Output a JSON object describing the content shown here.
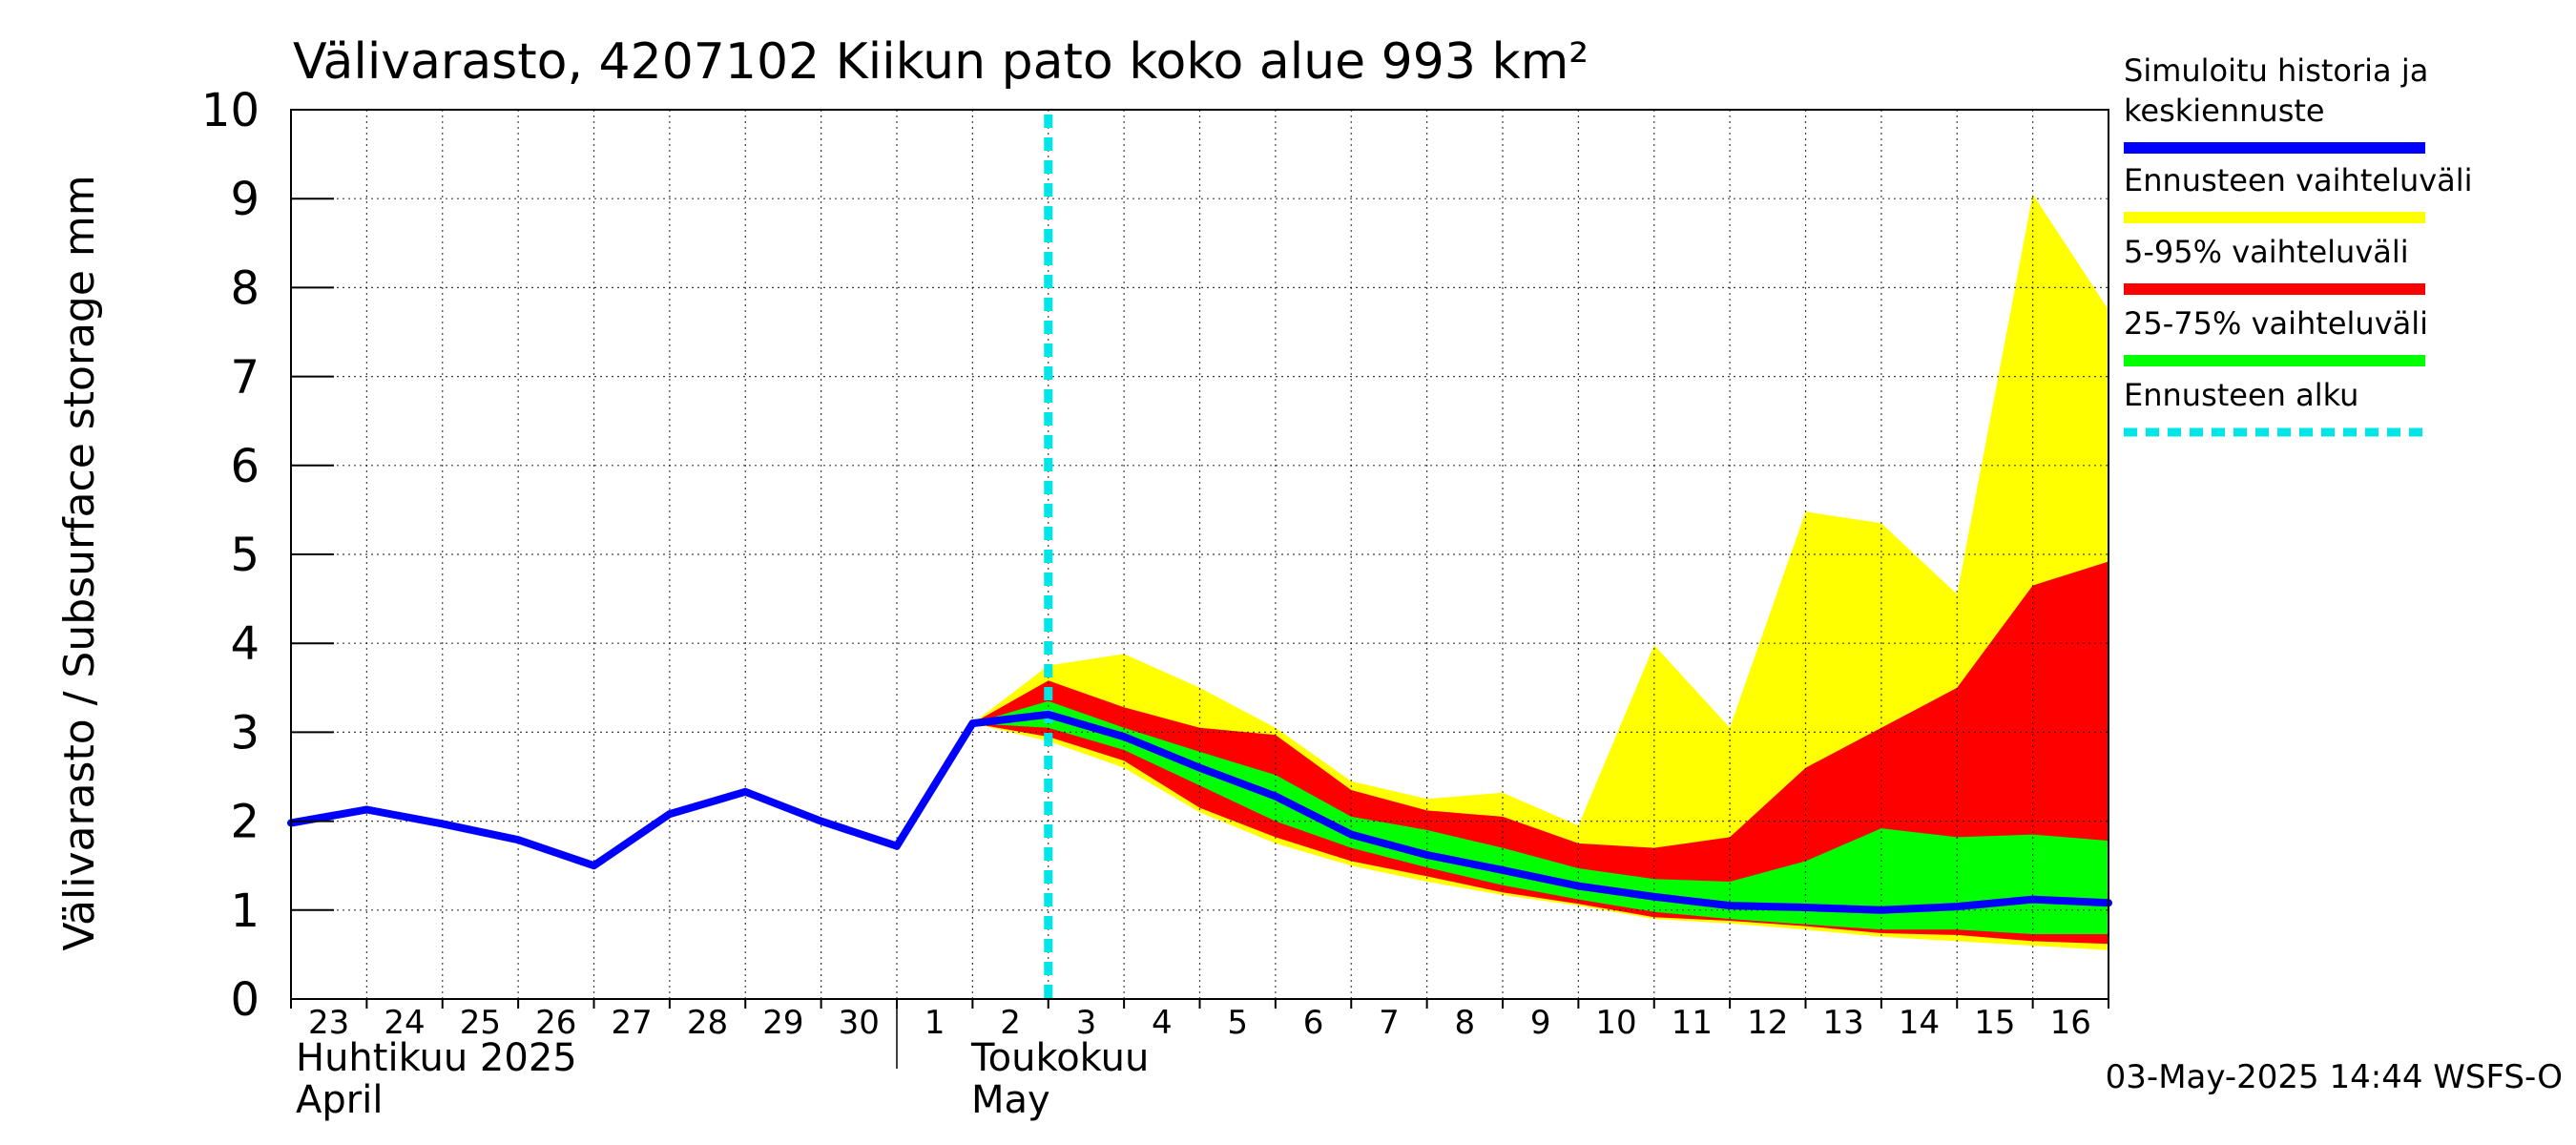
{
  "chart_data": {
    "type": "area",
    "title": "Välivarasto, 4207102 Kiikun pato koko alue 993 km²",
    "ylabel": "Välivarasto / Subsurface storage  mm",
    "ylim": [
      0,
      10
    ],
    "y_ticks": [
      "0",
      "1",
      "2",
      "3",
      "4",
      "5",
      "6",
      "7",
      "8",
      "9",
      "10"
    ],
    "x_range": [
      "2025-04-23",
      "2025-05-17"
    ],
    "x_tick_labels": [
      "23",
      "24",
      "25",
      "26",
      "27",
      "28",
      "29",
      "30",
      "1",
      "2",
      "3",
      "4",
      "5",
      "6",
      "7",
      "8",
      "9",
      "10",
      "11",
      "12",
      "13",
      "14",
      "15",
      "16"
    ],
    "month_labels": [
      {
        "line1": "Huhtikuu  2025",
        "line2": "April"
      },
      {
        "line1": "Toukokuu",
        "line2": "May"
      }
    ],
    "forecast_start": "2025-05-03",
    "grid": true,
    "legend_position": "right",
    "timestamp": "03-May-2025 14:44 WSFS-O",
    "x": [
      "2025-04-23",
      "2025-04-24",
      "2025-04-25",
      "2025-04-26",
      "2025-04-27",
      "2025-04-28",
      "2025-04-29",
      "2025-04-30",
      "2025-05-01",
      "2025-05-02",
      "2025-05-03",
      "2025-05-04",
      "2025-05-05",
      "2025-05-06",
      "2025-05-07",
      "2025-05-08",
      "2025-05-09",
      "2025-05-10",
      "2025-05-11",
      "2025-05-12",
      "2025-05-13",
      "2025-05-14",
      "2025-05-15",
      "2025-05-16",
      "2025-05-17"
    ],
    "series": [
      {
        "name": "Simuloitu historia ja keskiennuste",
        "color": "#0000ff",
        "kind": "line",
        "values": [
          1.98,
          2.13,
          1.97,
          1.79,
          1.5,
          2.08,
          2.33,
          2.0,
          1.72,
          3.1,
          3.2,
          2.95,
          2.6,
          2.28,
          1.85,
          1.62,
          1.45,
          1.27,
          1.15,
          1.05,
          1.03,
          1.0,
          1.04,
          1.12,
          1.08
        ]
      },
      {
        "name": "Ennusteen vaihteluväli",
        "color": "#ffff00",
        "kind": "band",
        "x_start_index": 9,
        "upper": [
          3.1,
          3.75,
          3.88,
          3.5,
          3.05,
          2.45,
          2.25,
          2.32,
          1.95,
          3.98,
          3.05,
          5.48,
          5.35,
          4.55,
          9.05,
          7.75
        ],
        "lower": [
          3.1,
          2.9,
          2.6,
          2.1,
          1.75,
          1.5,
          1.32,
          1.17,
          1.05,
          0.9,
          0.85,
          0.78,
          0.7,
          0.65,
          0.6,
          0.55
        ]
      },
      {
        "name": "5-95% vaihteluväli",
        "color": "#ff0000",
        "kind": "band",
        "x_start_index": 9,
        "upper": [
          3.1,
          3.58,
          3.28,
          3.05,
          2.97,
          2.35,
          2.12,
          2.05,
          1.75,
          1.7,
          1.82,
          2.6,
          3.05,
          3.5,
          4.65,
          4.92
        ],
        "lower": [
          3.1,
          2.95,
          2.68,
          2.15,
          1.82,
          1.55,
          1.38,
          1.2,
          1.07,
          0.92,
          0.88,
          0.82,
          0.74,
          0.72,
          0.65,
          0.62
        ]
      },
      {
        "name": "25-75% vaihteluväli",
        "color": "#00ff00",
        "kind": "band",
        "x_start_index": 9,
        "upper": [
          3.1,
          3.35,
          3.05,
          2.78,
          2.52,
          2.05,
          1.9,
          1.7,
          1.47,
          1.35,
          1.32,
          1.55,
          1.92,
          1.82,
          1.85,
          1.78
        ],
        "lower": [
          3.1,
          3.05,
          2.8,
          2.4,
          2.0,
          1.7,
          1.48,
          1.28,
          1.12,
          0.98,
          0.9,
          0.84,
          0.78,
          0.78,
          0.73,
          0.73
        ]
      },
      {
        "name": "Ennusteen alku",
        "color": "#00e5e5",
        "kind": "vline",
        "x": "2025-05-03"
      }
    ],
    "legend": [
      {
        "label": "Simuloitu historia ja keskiennuste",
        "lines": [
          "Simuloitu historia ja",
          "keskiennuste"
        ],
        "color": "#0000ff",
        "style": "solid"
      },
      {
        "label": "Ennusteen vaihteluväli",
        "lines": [
          "Ennusteen vaihteluväli"
        ],
        "color": "#ffff00",
        "style": "solid"
      },
      {
        "label": "5-95% vaihteluväli",
        "lines": [
          "5-95% vaihteluväli"
        ],
        "color": "#ff0000",
        "style": "solid"
      },
      {
        "label": "25-75% vaihteluväli",
        "lines": [
          "25-75% vaihteluväli"
        ],
        "color": "#00ff00",
        "style": "solid"
      },
      {
        "label": "Ennusteen alku",
        "lines": [
          "Ennusteen alku"
        ],
        "color": "#00e5e5",
        "style": "dashed"
      }
    ]
  }
}
